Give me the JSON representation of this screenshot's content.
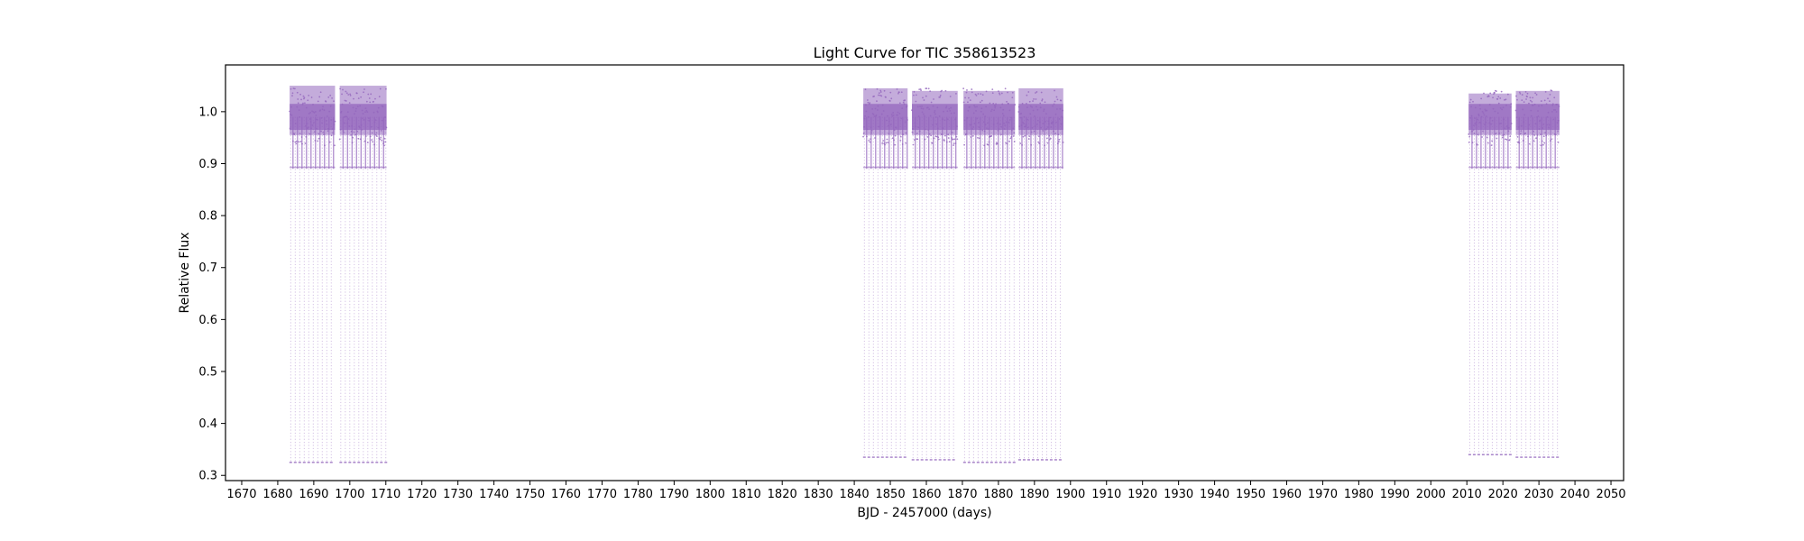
{
  "chart_data": {
    "type": "scatter",
    "title": "Light Curve for TIC 358613523",
    "xlabel": "BJD - 2457000 (days)",
    "ylabel": "Relative Flux",
    "xlim": [
      1665.5,
      2053.5
    ],
    "ylim": [
      0.29,
      1.09
    ],
    "xticks": [
      1670,
      1680,
      1690,
      1700,
      1710,
      1720,
      1730,
      1740,
      1750,
      1760,
      1770,
      1780,
      1790,
      1800,
      1810,
      1820,
      1830,
      1840,
      1850,
      1860,
      1870,
      1880,
      1890,
      1900,
      1910,
      1920,
      1930,
      1940,
      1950,
      1960,
      1970,
      1980,
      1990,
      2000,
      2010,
      2020,
      2030,
      2040,
      2050
    ],
    "yticks": [
      0.3,
      0.4,
      0.5,
      0.6,
      0.7,
      0.8,
      0.9,
      1.0
    ],
    "ytick_labels": [
      "0.3",
      "0.4",
      "0.5",
      "0.6",
      "0.7",
      "0.8",
      "0.9",
      "1.0"
    ],
    "grid": false,
    "legend": "none",
    "color": "#9467bd",
    "eclipse_period_days": 1.25,
    "data_segments": [
      {
        "x_start": 1683.3,
        "x_end": 1695.9,
        "flux_min": 0.325,
        "flux_max": 1.05,
        "baseline": 0.99
      },
      {
        "x_start": 1697.2,
        "x_end": 1710.2,
        "flux_min": 0.325,
        "flux_max": 1.05,
        "baseline": 0.99
      },
      {
        "x_start": 1842.5,
        "x_end": 1854.8,
        "flux_min": 0.335,
        "flux_max": 1.045,
        "baseline": 0.99
      },
      {
        "x_start": 1856.0,
        "x_end": 1868.7,
        "flux_min": 0.33,
        "flux_max": 1.04,
        "baseline": 0.99
      },
      {
        "x_start": 1870.3,
        "x_end": 1884.6,
        "flux_min": 0.325,
        "flux_max": 1.04,
        "baseline": 0.99
      },
      {
        "x_start": 1885.6,
        "x_end": 1898.0,
        "flux_min": 0.33,
        "flux_max": 1.045,
        "baseline": 0.99
      },
      {
        "x_start": 2010.5,
        "x_end": 2022.4,
        "flux_min": 0.34,
        "flux_max": 1.035,
        "baseline": 0.99
      },
      {
        "x_start": 2023.6,
        "x_end": 2035.7,
        "flux_min": 0.335,
        "flux_max": 1.04,
        "baseline": 0.99
      }
    ]
  }
}
